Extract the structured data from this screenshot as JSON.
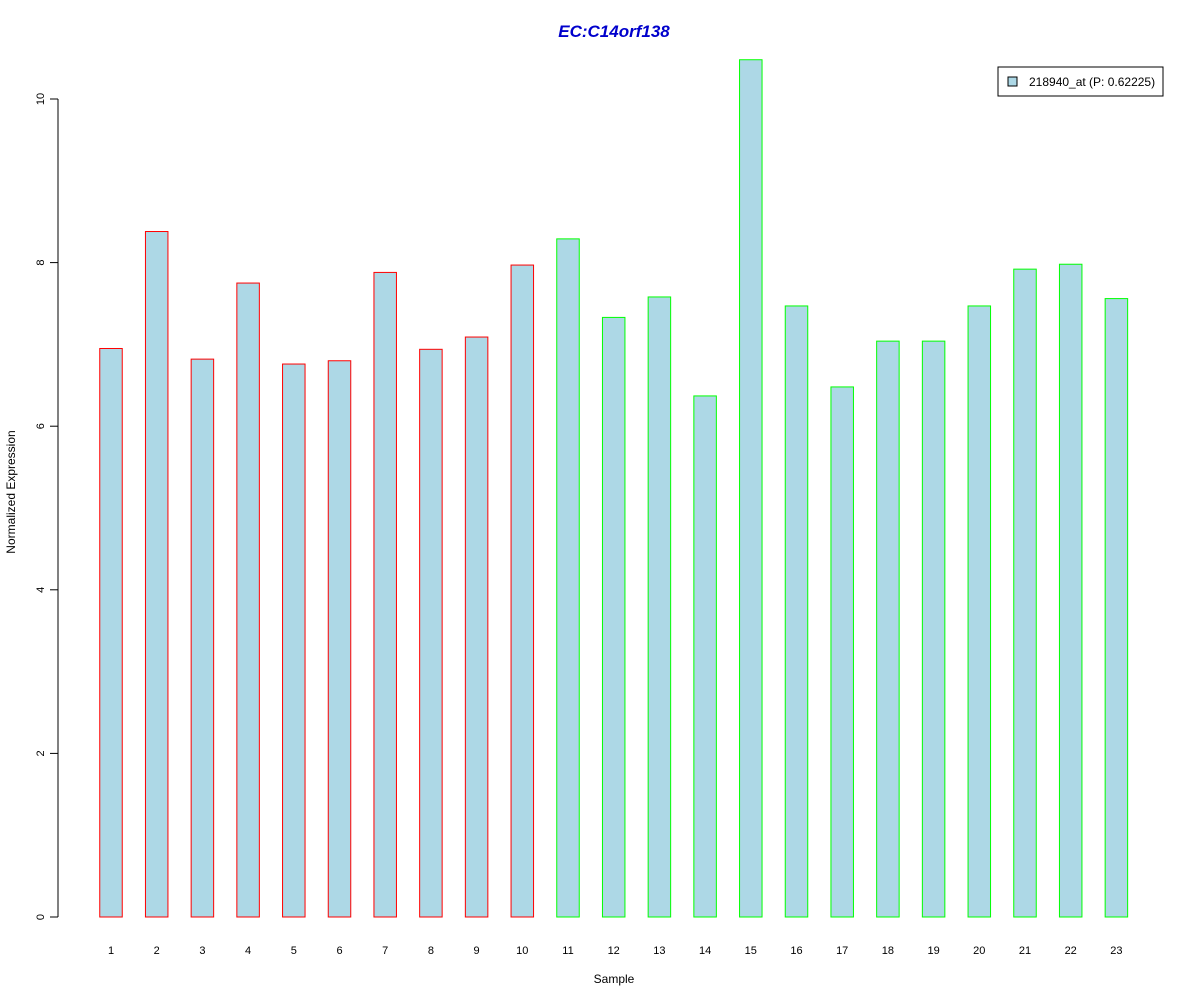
{
  "chart_data": {
    "type": "bar",
    "title": "EC:C14orf138",
    "xlabel": "Sample",
    "ylabel": "Normalized Expression",
    "categories": [
      "1",
      "2",
      "3",
      "4",
      "5",
      "6",
      "7",
      "8",
      "9",
      "10",
      "11",
      "12",
      "13",
      "14",
      "15",
      "16",
      "17",
      "18",
      "19",
      "20",
      "21",
      "22",
      "23"
    ],
    "series": [
      {
        "name": "218940_at (P: 0.62225)",
        "values": [
          6.95,
          8.38,
          6.82,
          7.75,
          6.76,
          6.8,
          7.88,
          6.94,
          7.09,
          7.97,
          8.29,
          7.33,
          7.58,
          6.37,
          10.48,
          7.47,
          6.48,
          7.04,
          7.04,
          7.47,
          7.92,
          7.98,
          7.56
        ]
      }
    ],
    "border_groups": [
      "red",
      "red",
      "red",
      "red",
      "red",
      "red",
      "red",
      "red",
      "red",
      "red",
      "green",
      "green",
      "green",
      "green",
      "green",
      "green",
      "green",
      "green",
      "green",
      "green",
      "green",
      "green",
      "green"
    ],
    "ylim": [
      0,
      10.5
    ],
    "yticks": [
      "0",
      "2",
      "4",
      "6",
      "8",
      "10"
    ],
    "legend_position": "top-right",
    "grid": false
  },
  "colors": {
    "bar_fill": "#add8e6",
    "border_red": "#ff0000",
    "border_green": "#00ff00",
    "title": "#0000cc",
    "axis": "#000000"
  }
}
